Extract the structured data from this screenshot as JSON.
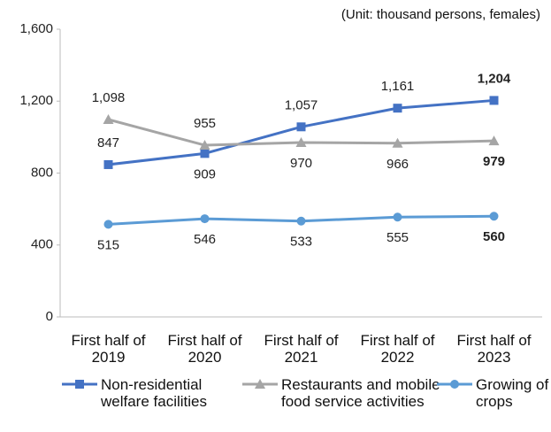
{
  "chart_data": {
    "type": "line",
    "subtitle": "(Unit: thousand persons, females)",
    "categories": [
      "First half of 2019",
      "First half of 2020",
      "First half of 2021",
      "First half of 2022",
      "First half of 2023"
    ],
    "series": [
      {
        "name": "Non-residential welfare facilities",
        "color": "#4472c4",
        "marker": "square",
        "values": [
          847,
          909,
          1057,
          1161,
          1204
        ],
        "value_labels": [
          "847",
          "909",
          "1,057",
          "1,161",
          "1,204"
        ]
      },
      {
        "name": "Restaurants and mobile food service activities",
        "color": "#a5a5a5",
        "marker": "triangle",
        "values": [
          1098,
          955,
          970,
          966,
          979
        ],
        "value_labels": [
          "1,098",
          "955",
          "970",
          "966",
          "979"
        ]
      },
      {
        "name": "Growing of crops",
        "color": "#5b9bd5",
        "marker": "circle",
        "values": [
          515,
          546,
          533,
          555,
          560
        ],
        "value_labels": [
          "515",
          "546",
          "533",
          "555",
          "560"
        ]
      }
    ],
    "ylim": [
      0,
      1600
    ],
    "yticks": [
      0,
      {
        "value": 400,
        "label": "400"
      },
      {
        "value": 800,
        "label": "800"
      },
      {
        "value": 1200,
        "label": "1,200"
      },
      {
        "value": 1600,
        "label": "1,600"
      }
    ],
    "grid": false,
    "legend": "bottom"
  }
}
